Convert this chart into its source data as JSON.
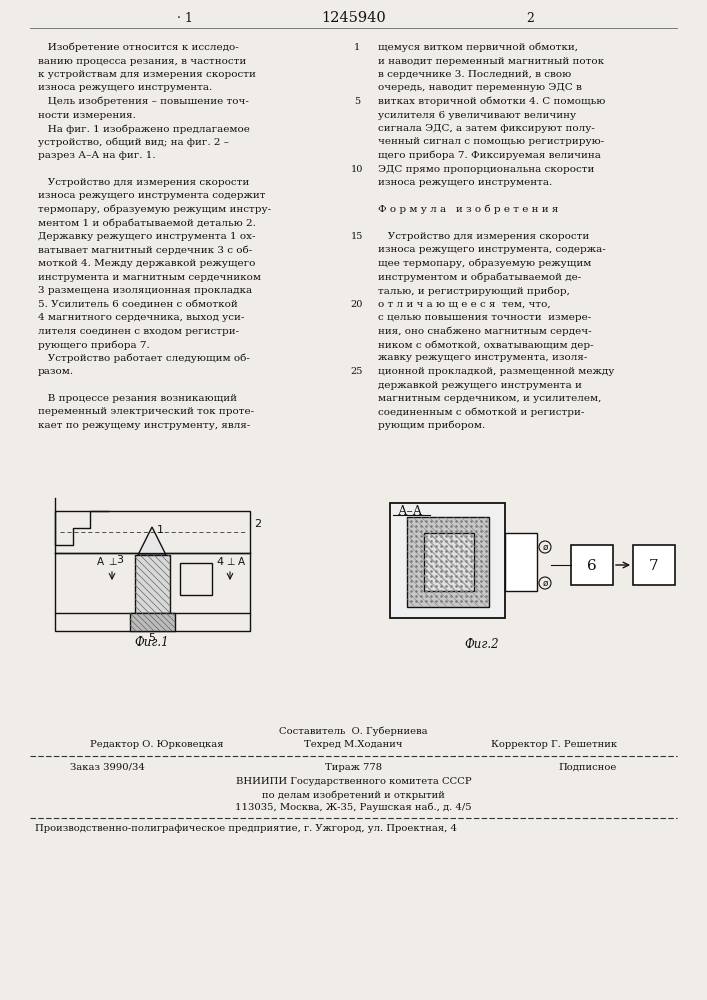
{
  "bg_color": "#f0ede8",
  "text_color": "#111111",
  "page_title": "1245940",
  "col1_num": "1",
  "col2_num": "2",
  "col1_lines": [
    "   Изобретение относится к исследо-",
    "ванию процесса резания, в частности",
    "к устройствам для измерения скорости",
    "износа режущего инструмента.",
    "   Цель изобретения – повышение точ-",
    "ности измерения.",
    "   На фиг. 1 изображено предлагаемое",
    "устройство, общий вид; на фиг. 2 –",
    "разрез А–А на фиг. 1.",
    "",
    "   Устройство для измерения скорости",
    "износа режущего инструмента содержит",
    "термопару, образуемую режущим инстру-",
    "ментом 1 и обрабатываемой деталью 2.",
    "Державку режущего инструмента 1 ох-",
    "ватывает магнитный сердечник 3 с об-",
    "моткой 4. Между державкой режущего",
    "инструмента и магнитным сердечником",
    "3 размещена изоляционная прокладка",
    "5. Усилитель 6 соединен с обмоткой",
    "4 магнитного сердечника, выход уси-",
    "лителя соединен с входом регистри-",
    "рующего прибора 7.",
    "   Устройство работает следующим об-",
    "разом.",
    "",
    "   В процессе резания возникающий",
    "переменный электрический ток проте-",
    "кает по режущему инструменту, явля-"
  ],
  "col2_lines": [
    "щемуся витком первичной обмотки,",
    "и наводит переменный магнитный поток",
    "в сердечнике 3. Последний, в свою",
    "очередь, наводит переменную ЭДС в",
    "витках вторичной обмотки 4. С помощью",
    "усилителя 6 увеличивают величину",
    "сигнала ЭДС, а затем фиксируют полу-",
    "ченный сигнал с помощью регистрирую-",
    "щего прибора 7. Фиксируемая величина",
    "ЭДС прямо пропорциональна скорости",
    "износа режущего инструмента.",
    "",
    "Ф о р м у л а   и з о б р е т е н и я",
    "",
    "   Устройство для измерения скорости",
    "износа режущего инструмента, содержа-",
    "щее термопару, образуемую режущим",
    "инструментом и обрабатываемой де-",
    "талью, и регистрирующий прибор,",
    "о т л и ч а ю щ е е с я  тем, что,",
    "с целью повышения точности  измере-",
    "ния, оно снабжено магнитным сердеч-",
    "ником с обмоткой, охватывающим дер-",
    "жавку режущего инструмента, изоля-",
    "ционной прокладкой, размещенной между",
    "державкой режущего инструмента и",
    "магнитным сердечником, и усилителем,",
    "соединенным с обмоткой и регистри-",
    "рующим прибором."
  ],
  "line_num_indices": {
    "0": 1,
    "4": 5,
    "9": 10,
    "14": 15,
    "19": 20,
    "24": 25
  },
  "footer_sestavitel": "Составитель  О. Губерниева",
  "footer_redaktor": "Редактор О. Юрковецкая",
  "footer_tehred": "Техред М.Ходанич",
  "footer_korrektor": "Корректор Г. Решетник",
  "footer_zakaz": "Заказ 3990/34",
  "footer_tirazh": "Тираж 778",
  "footer_podpisnoe": "Подписное",
  "footer_vniip1": "ВНИИПИ Государственного комитета СССР",
  "footer_vniip2": "по делам изобретений и открытий",
  "footer_vniip3": "113035, Москва, Ж-35, Раушская наб., д. 4/5",
  "footer_predpriyatie": "Производственно-полиграфическое предприятие, г. Ужгород, ул. Проектная, 4"
}
